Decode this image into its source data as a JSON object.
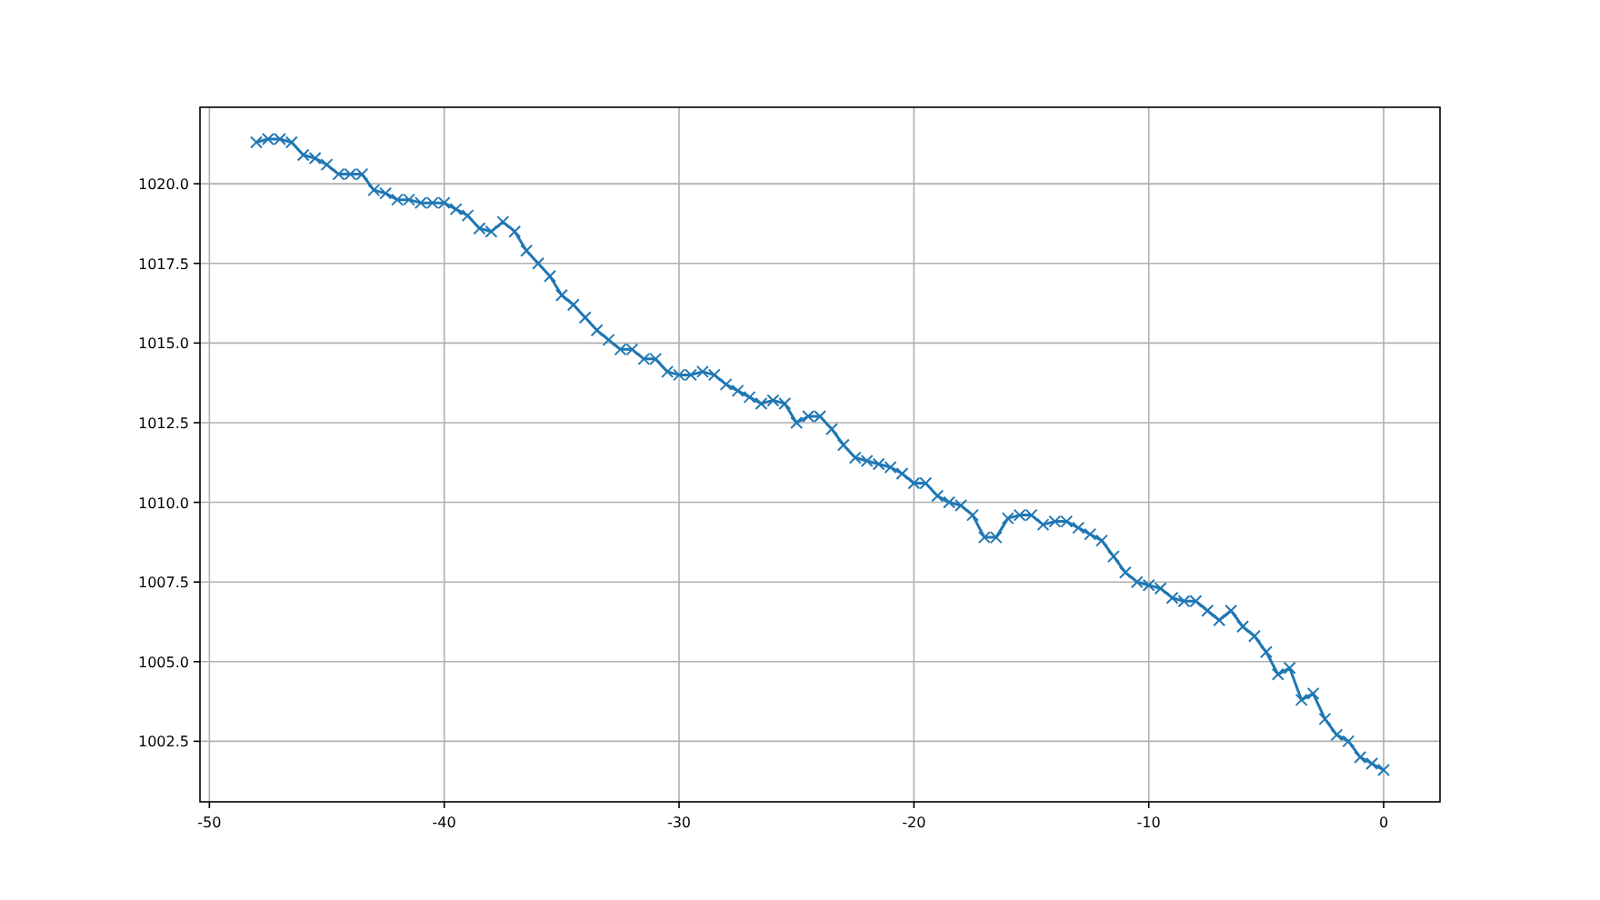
{
  "chart_data": {
    "type": "line",
    "x": [
      -48,
      -47.5,
      -47,
      -46.5,
      -46,
      -45.5,
      -45,
      -44.5,
      -44,
      -43.5,
      -43,
      -42.5,
      -42,
      -41.5,
      -41,
      -40.5,
      -40,
      -39.5,
      -39,
      -38.5,
      -38,
      -37.5,
      -37,
      -36.5,
      -36,
      -35.5,
      -35,
      -34.5,
      -34,
      -33.5,
      -33,
      -32.5,
      -32,
      -31.5,
      -31,
      -30.5,
      -30,
      -29.5,
      -29,
      -28.5,
      -28,
      -27.5,
      -27,
      -26.5,
      -26,
      -25.5,
      -25,
      -24.5,
      -24,
      -23.5,
      -23,
      -22.5,
      -22,
      -21.5,
      -21,
      -20.5,
      -20,
      -19.5,
      -19,
      -18.5,
      -18,
      -17.5,
      -17,
      -16.5,
      -16,
      -15.5,
      -15,
      -14.5,
      -14,
      -13.5,
      -13,
      -12.5,
      -12,
      -11.5,
      -11,
      -10.5,
      -10,
      -9.5,
      -9,
      -8.5,
      -8,
      -7.5,
      -7,
      -6.5,
      -6,
      -5.5,
      -5,
      -4.5,
      -4,
      -3.5,
      -3,
      -2.5,
      -2,
      -1.5,
      -1,
      -0.5,
      0
    ],
    "series": [
      {
        "color": "#1f77b4",
        "values": [
          1021.3,
          1021.4,
          1021.4,
          1021.3,
          1020.9,
          1020.8,
          1020.6,
          1020.3,
          1020.3,
          1020.3,
          1019.8,
          1019.7,
          1019.5,
          1019.5,
          1019.4,
          1019.4,
          1019.4,
          1019.2,
          1019.0,
          1018.6,
          1018.5,
          1018.8,
          1018.5,
          1017.9,
          1017.5,
          1017.1,
          1016.5,
          1016.2,
          1015.8,
          1015.4,
          1015.1,
          1014.8,
          1014.8,
          1014.5,
          1014.5,
          1014.1,
          1014.0,
          1014.0,
          1014.1,
          1014.0,
          1013.7,
          1013.5,
          1013.3,
          1013.1,
          1013.2,
          1013.1,
          1012.5,
          1012.7,
          1012.7,
          1012.3,
          1011.8,
          1011.4,
          1011.3,
          1011.2,
          1011.1,
          1010.9,
          1010.6,
          1010.6,
          1010.2,
          1010.0,
          1009.9,
          1009.6,
          1008.9,
          1008.9,
          1009.5,
          1009.6,
          1009.6,
          1009.3,
          1009.4,
          1009.4,
          1009.2,
          1009.0,
          1008.8,
          1008.3,
          1007.8,
          1007.5,
          1007.4,
          1007.3,
          1007.0,
          1006.9,
          1006.9,
          1006.6,
          1006.3,
          1006.6,
          1006.1,
          1005.8,
          1005.3,
          1004.6,
          1004.8,
          1003.8,
          1004.0,
          1003.2,
          1002.7,
          1002.5,
          1002.0,
          1001.8,
          1001.6
        ]
      }
    ],
    "xlim": [
      -50.4,
      2.4
    ],
    "ylim": [
      1000.6,
      1022.4
    ],
    "xticks": [
      -50,
      -40,
      -30,
      -20,
      -10,
      0
    ],
    "yticks": [
      {
        "value": 1002.5,
        "label": "1002.5"
      },
      {
        "value": 1005,
        "label": "1005.0"
      },
      {
        "value": 1007.5,
        "label": "1007.5"
      },
      {
        "value": 1010,
        "label": "1010.0"
      },
      {
        "value": 1012.5,
        "label": "1012.5"
      },
      {
        "value": 1015,
        "label": "1015.0"
      },
      {
        "value": 1017.5,
        "label": "1017.5"
      },
      {
        "value": 1020,
        "label": "1020.0"
      }
    ],
    "grid": true,
    "marker": "cross",
    "line_style": "solid"
  }
}
